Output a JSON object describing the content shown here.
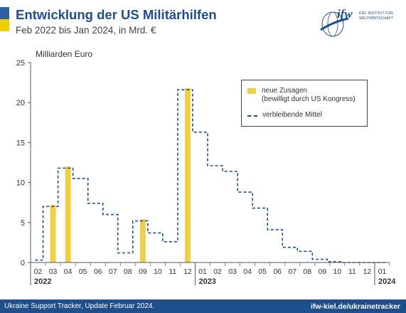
{
  "header": {
    "title": "Entwicklung der US Militärhilfen",
    "subtitle": "Feb 2022 bis Jan 2024, in Mrd. €"
  },
  "logo": {
    "mark": "ifw",
    "line1": "KIEL INSTITUT FÜR",
    "line2": "WELTWIRTSCHAFT"
  },
  "footer": {
    "left": "Ukraine Support Tracker, Update Februar 2024.",
    "right": "ifw-kiel.de/ukrainetracker"
  },
  "legend": {
    "bar_label_line1": "neue Zusagen",
    "bar_label_line2": "(bewilligt durch US Kongress)",
    "line_label": "verbleibende Mittel"
  },
  "colors": {
    "bar": "#f0cf48",
    "line": "#1f4e8c",
    "brand": "#1f4e8c",
    "flag_blue": "#2e5f9e",
    "flag_yellow": "#f2cd00"
  },
  "chart_data": {
    "type": "bar",
    "ylabel": "Milliarden Euro",
    "ylim": [
      0,
      25
    ],
    "yticks": [
      0,
      5,
      10,
      15,
      20,
      25
    ],
    "grid": false,
    "legend_position": "top-right",
    "categories": [
      "02",
      "03",
      "04",
      "05",
      "06",
      "07",
      "08",
      "09",
      "10",
      "11",
      "12",
      "01",
      "02",
      "03",
      "04",
      "05",
      "06",
      "07",
      "08",
      "09",
      "10",
      "11",
      "12",
      "01"
    ],
    "year_labels": [
      {
        "label": "2022",
        "start": 0
      },
      {
        "label": "2023",
        "start": 11
      },
      {
        "label": "2024",
        "start": 23
      }
    ],
    "series": [
      {
        "name": "neue Zusagen (bewilligt durch US Kongress)",
        "type": "bar",
        "values": [
          0,
          7.2,
          12.0,
          0,
          0,
          0,
          0,
          5.4,
          0,
          0,
          21.8,
          0,
          0,
          0,
          0,
          0,
          0,
          0,
          0,
          0,
          0,
          0,
          0,
          0
        ]
      },
      {
        "name": "verbleibende Mittel",
        "type": "step",
        "values": [
          0.3,
          7.0,
          11.8,
          10.5,
          7.4,
          6.0,
          1.2,
          5.2,
          3.7,
          2.6,
          21.6,
          16.3,
          12.1,
          11.4,
          8.8,
          6.8,
          4.1,
          1.9,
          1.4,
          0.4,
          0.1,
          0,
          0,
          0
        ]
      }
    ]
  }
}
